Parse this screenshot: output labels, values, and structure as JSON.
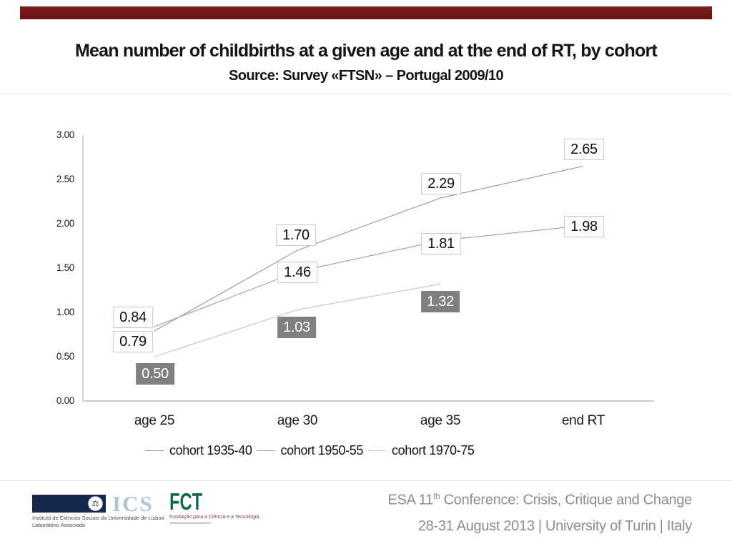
{
  "slide": {
    "title": "Mean number of childbirths at a given age and at the end of RT, by cohort",
    "subtitle": "Source: Survey «FTSN» – Portugal 2009/10",
    "top_bar_color": "#7A1C1A"
  },
  "chart_data": {
    "type": "line",
    "title": "",
    "xlabel": "",
    "ylabel": "",
    "categories": [
      "age 25",
      "age 30",
      "age 35",
      "end RT"
    ],
    "series": [
      {
        "name": "cohort 1935-40",
        "values": [
          0.79,
          1.7,
          2.29,
          2.65
        ],
        "color": "#9193A3",
        "label_style": "white-box-gray-border"
      },
      {
        "name": "cohort 1950-55",
        "values": [
          0.84,
          1.46,
          1.81,
          1.98
        ],
        "color": "#C0908D",
        "label_style": "white-box-red-border"
      },
      {
        "name": "cohort 1970-75",
        "values": [
          0.5,
          1.03,
          1.32,
          null
        ],
        "color": "#C9BEBC",
        "label_style": "gray-filled-box"
      }
    ],
    "ylim": [
      0,
      3
    ],
    "ytick_labels": [
      "0.00",
      "0.50",
      "1.00",
      "1.50",
      "2.00",
      "2.50",
      "3.00"
    ],
    "grid": false,
    "legend_position": "bottom",
    "axis_color": "#ADADAD"
  },
  "footer": {
    "ics_logo": {
      "label": "ICS",
      "caption_line1": "Instituto de Ciências Sociais da Universidade de Lisboa",
      "caption_line2": "Laboratório  Associado"
    },
    "fct_logo": {
      "label": "FCT",
      "caption": "Fundação para a Ciência e a Tecnologia"
    },
    "conference_line1_prefix": "ESA 11",
    "conference_line1_sup": "th",
    "conference_line1_suffix": " Conference: Crisis, Critique and Change",
    "conference_line2": "28-31 August 2013 | University of Turin | Italy"
  }
}
